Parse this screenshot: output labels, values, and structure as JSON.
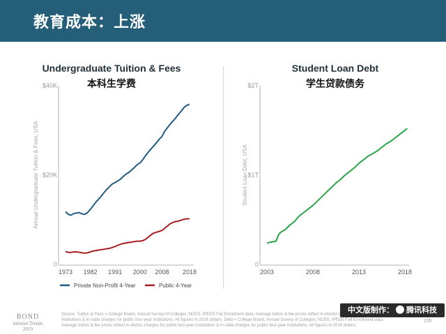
{
  "header": {
    "title": "教育成本：上涨"
  },
  "colors": {
    "header_bg": "#245e78",
    "private": "#1f5a82",
    "public": "#a61c20",
    "loan": "#2aa34a",
    "axis": "#b0b0b0"
  },
  "left_chart": {
    "title": "Undergraduate Tuition & Fees",
    "subtitle": "本科生学费"
  },
  "right_chart": {
    "title": "Student Loan Debt",
    "subtitle": "学生贷款债务"
  },
  "chart_data": [
    {
      "type": "line",
      "title": "Undergraduate Tuition & Fees",
      "subtitle": "本科生学费",
      "ylabel": "Annual Undergraduate Tuition & Fees, USA",
      "xlim": [
        1973,
        2018
      ],
      "ylim": [
        0,
        40000
      ],
      "y_ticks": [
        0,
        20000,
        40000
      ],
      "y_tick_labels": [
        "0",
        "$20K",
        "$40K"
      ],
      "x_ticks": [
        1973,
        1982,
        1991,
        2000,
        2008,
        2018
      ],
      "x_tick_labels": [
        "1973",
        "1982",
        "1991",
        "2000",
        "2008",
        "2018"
      ],
      "grid": false,
      "legend": "bottom",
      "series": [
        {
          "name": "Private Non-Profit 4-Year",
          "color": "#1f5a82",
          "x": [
            1973,
            1974,
            1975,
            1976,
            1977,
            1978,
            1979,
            1980,
            1981,
            1982,
            1983,
            1984,
            1985,
            1986,
            1987,
            1988,
            1989,
            1990,
            1991,
            1992,
            1993,
            1994,
            1995,
            1996,
            1997,
            1998,
            1999,
            2000,
            2001,
            2002,
            2003,
            2004,
            2005,
            2006,
            2007,
            2008,
            2009,
            2010,
            2011,
            2012,
            2013,
            2014,
            2015,
            2016,
            2017,
            2018
          ],
          "values": [
            11800,
            11200,
            11000,
            11400,
            11500,
            11600,
            11300,
            11200,
            11600,
            12300,
            13100,
            13900,
            14600,
            15300,
            16100,
            16800,
            17400,
            18000,
            18300,
            18700,
            19100,
            19700,
            20200,
            20600,
            21100,
            21700,
            22300,
            22700,
            23400,
            24300,
            25100,
            25800,
            26500,
            27200,
            28000,
            28600,
            29800,
            30600,
            31400,
            32100,
            32800,
            33600,
            34300,
            35100,
            35600,
            35800
          ]
        },
        {
          "name": "Public 4-Year",
          "color": "#a61c20",
          "x": [
            1973,
            1974,
            1975,
            1976,
            1977,
            1978,
            1979,
            1980,
            1981,
            1982,
            1983,
            1984,
            1985,
            1986,
            1987,
            1988,
            1989,
            1990,
            1991,
            1992,
            1993,
            1994,
            1995,
            1996,
            1997,
            1998,
            1999,
            2000,
            2001,
            2002,
            2003,
            2004,
            2005,
            2006,
            2007,
            2008,
            2009,
            2010,
            2011,
            2012,
            2013,
            2014,
            2015,
            2016,
            2017,
            2018
          ],
          "values": [
            2900,
            2700,
            2700,
            2800,
            2800,
            2700,
            2600,
            2500,
            2600,
            2800,
            3000,
            3100,
            3200,
            3300,
            3400,
            3500,
            3600,
            3800,
            4000,
            4300,
            4500,
            4700,
            4800,
            4900,
            5000,
            5100,
            5200,
            5200,
            5300,
            5600,
            6100,
            6600,
            7000,
            7200,
            7400,
            7600,
            8100,
            8600,
            9100,
            9400,
            9600,
            9700,
            9900,
            10100,
            10200,
            10200
          ]
        }
      ]
    },
    {
      "type": "line",
      "title": "Student Loan Debt",
      "subtitle": "学生贷款债务",
      "ylabel": "Student Loan Debt, USA",
      "xlim": [
        2003,
        2018
      ],
      "ylim": [
        0,
        2
      ],
      "y_ticks": [
        0,
        1,
        2
      ],
      "y_tick_labels": [
        "0",
        "$1T",
        "$2T"
      ],
      "x_ticks": [
        2003,
        2008,
        2013,
        2018
      ],
      "x_tick_labels": [
        "2003",
        "2008",
        "2013",
        "2018"
      ],
      "grid": false,
      "series": [
        {
          "color": "#2aa34a",
          "x": [
            2003.0,
            2003.5,
            2004.0,
            2004.25,
            2004.5,
            2005.0,
            2005.5,
            2006.0,
            2006.5,
            2007.0,
            2007.5,
            2008.0,
            2008.5,
            2009.0,
            2009.5,
            2010.0,
            2010.5,
            2011.0,
            2011.5,
            2012.0,
            2012.5,
            2013.0,
            2013.5,
            2014.0,
            2014.5,
            2015.0,
            2015.5,
            2016.0,
            2016.5,
            2017.0,
            2017.5,
            2018.0,
            2018.25
          ],
          "values": [
            0.24,
            0.25,
            0.26,
            0.33,
            0.36,
            0.39,
            0.44,
            0.48,
            0.54,
            0.58,
            0.62,
            0.66,
            0.71,
            0.76,
            0.81,
            0.86,
            0.91,
            0.95,
            1.0,
            1.04,
            1.08,
            1.13,
            1.17,
            1.21,
            1.24,
            1.27,
            1.31,
            1.35,
            1.38,
            1.42,
            1.46,
            1.5,
            1.52
          ]
        }
      ]
    }
  ],
  "footer": {
    "brand_line1": "BOND",
    "brand_line2": "Internet Trends",
    "brand_line3": "2019",
    "source": "Source: Tuition & Fees = College Board, Annual Survey of Colleges; NCES, IPEDS Fall Enrollment data. Average tuition & fee prices reflect in-district charges for public two-year institutions & in-state charges for public four-year institutions. All figures in 2018 dollars. Debt = College Board, Annual Survey of Colleges; NCES, IPEDS Fall Enrollment data. Average tuition & fee prices reflect in-district charges for public two-year institutions & in-state charges for public four-year institutions. All figures in 2018 dollars.",
    "page": "235",
    "badge_text_a": "中文版制作：",
    "badge_text_b": "腾讯科技"
  }
}
